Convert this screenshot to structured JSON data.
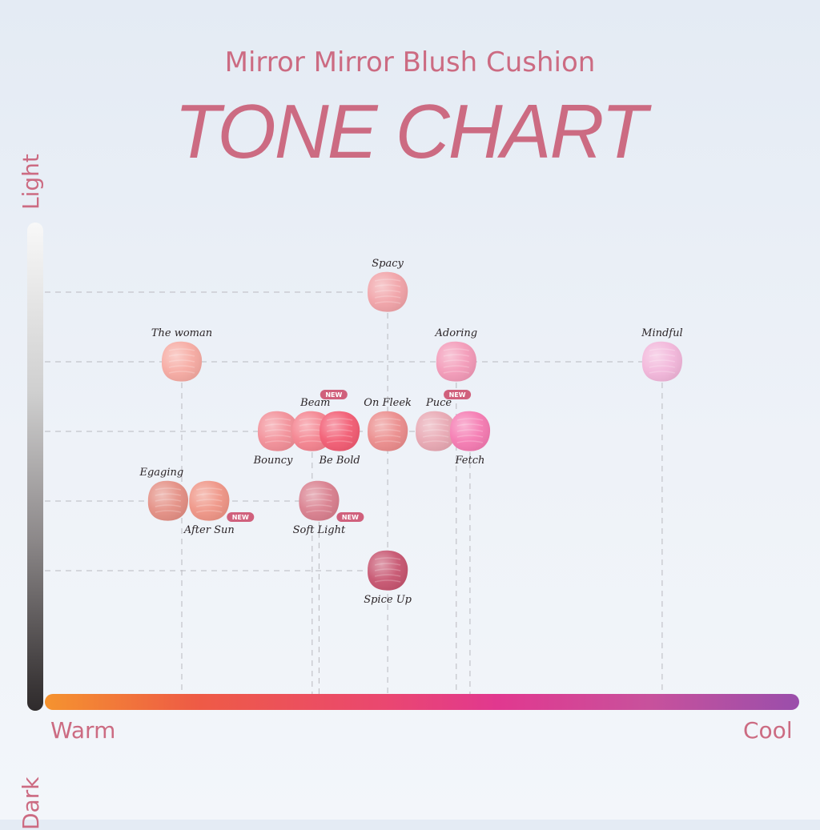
{
  "header": {
    "subtitle": "Mirror Mirror Blush Cushion",
    "title": "TONE CHART"
  },
  "chart_data": {
    "type": "scatter",
    "title": "TONE CHART",
    "subtitle": "Mirror Mirror Blush Cushion",
    "x_axis": {
      "low_label": "Warm",
      "high_label": "Cool"
    },
    "y_axis": {
      "low_label": "Dark",
      "high_label": "Light"
    },
    "x_levels": 8,
    "y_levels": 5,
    "grid": "dashed",
    "badge_text": "NEW",
    "points": [
      {
        "name": "Spacy",
        "x": 4,
        "y": 5,
        "color": "#f1a3a8",
        "new": false
      },
      {
        "name": "The woman",
        "x": 1,
        "y": 4,
        "color": "#f6aaa2",
        "new": false
      },
      {
        "name": "Adoring",
        "x": 5,
        "y": 4,
        "color": "#f39ab8",
        "new": false
      },
      {
        "name": "Mindful",
        "x": 8,
        "y": 4,
        "color": "#f2b6da",
        "new": false
      },
      {
        "name": "Bouncy",
        "x": 2.4,
        "y": 3,
        "color": "#f28f98",
        "new": false
      },
      {
        "name": "Beam",
        "x": 2.9,
        "y": 3,
        "color": "#f4838f",
        "new": true
      },
      {
        "name": "Be Bold",
        "x": 3.3,
        "y": 3,
        "color": "#f25c73",
        "new": false
      },
      {
        "name": "On Fleek",
        "x": 4,
        "y": 3,
        "color": "#eb8c8c",
        "new": false
      },
      {
        "name": "Puce",
        "x": 4.7,
        "y": 3,
        "color": "#e8a8b3",
        "new": true
      },
      {
        "name": "Fetch",
        "x": 5.2,
        "y": 3,
        "color": "#f57bb2",
        "new": false
      },
      {
        "name": "Egaging",
        "x": 0.8,
        "y": 2,
        "color": "#e48f84",
        "new": false
      },
      {
        "name": "After Sun",
        "x": 1.4,
        "y": 2,
        "color": "#ef9586",
        "new": true
      },
      {
        "name": "Soft Light",
        "x": 3,
        "y": 2,
        "color": "#d97f8e",
        "new": true
      },
      {
        "name": "Spice Up",
        "x": 4,
        "y": 1,
        "color": "#c75570",
        "new": false
      }
    ],
    "colors": {
      "accent": "#cc6b82",
      "label": "#2b2427",
      "badge": "#d0607c",
      "grid": "#b9b9bf"
    }
  }
}
